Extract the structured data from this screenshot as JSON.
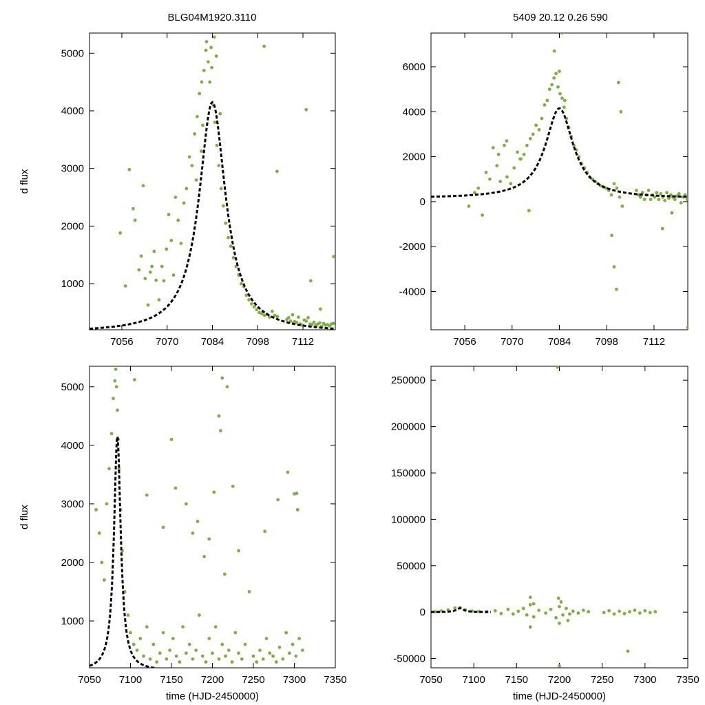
{
  "header": {
    "title_left": "BLG04M1920.3110",
    "title_right": "5409  20.12  0.26  590"
  },
  "style": {
    "point_color": "#7fae42",
    "model_color": "#000000",
    "axis_color": "#000000"
  },
  "chart_data": [
    {
      "id": "top-left",
      "type": "scatter",
      "title": "",
      "xlabel": "",
      "ylabel": "d flux",
      "xlim": [
        7046,
        7122
      ],
      "ylim": [
        200,
        5350
      ],
      "xticks": [
        7056,
        7070,
        7084,
        7098,
        7112
      ],
      "yticks": [
        1000,
        2000,
        3000,
        4000,
        5000
      ],
      "grid": false,
      "model": {
        "name": "fit",
        "t0": 7084,
        "peak": 4150,
        "base": 150,
        "tau": 5.0,
        "x_range": [
          7046,
          7122
        ]
      },
      "series": [
        {
          "name": "observations",
          "x": [
            7055.5,
            7057.1,
            7058.3,
            7059.5,
            7060.1,
            7061.3,
            7062.0,
            7062.6,
            7063.2,
            7064.1,
            7064.8,
            7065.3,
            7066.0,
            7066.6,
            7067.5,
            7068.4,
            7069.0,
            7069.8,
            7070.5,
            7071.3,
            7072.0,
            7072.6,
            7073.4,
            7074.3,
            7075.2,
            7076.0,
            7076.9,
            7077.7,
            7078.5,
            7079.3,
            7080.0,
            7080.7,
            7081.4,
            7082.0,
            7082.7,
            7083.2,
            7083.8,
            7084.3,
            7084.8,
            7085.4,
            7086.0,
            7086.7,
            7087.4,
            7088.1,
            7088.9,
            7089.7,
            7090.5,
            7091.3,
            7092.1,
            7092.9,
            7093.7,
            7094.5,
            7095.3,
            7096.1,
            7096.9,
            7097.7,
            7098.5,
            7099.3,
            7100.1,
            7100.9,
            7101.7,
            7102.5,
            7103.3,
            7104.1,
            7107.0,
            7107.6,
            7108.2,
            7108.8,
            7109.4,
            7110.0,
            7110.6,
            7111.2,
            7111.8,
            7112.4,
            7113.0,
            7113.6,
            7114.2,
            7114.8,
            7115.4,
            7116.0,
            7116.6,
            7117.2,
            7117.8,
            7118.4,
            7119.0,
            7119.6,
            7120.2,
            7120.8,
            7121.4,
            7104.0,
            7100.0,
            7113.0,
            7121.5,
            7084.6,
            7083.6,
            7082.2,
            7085.2,
            7086.4,
            7080.6,
            7079.0,
            7081.0,
            7109.2,
            7114.4,
            7117.4
          ],
          "y": [
            1880,
            960,
            2980,
            2300,
            2100,
            1240,
            1480,
            2700,
            1090,
            630,
            1200,
            1300,
            1560,
            1060,
            720,
            1300,
            1050,
            1600,
            2200,
            1750,
            1150,
            2500,
            2100,
            1700,
            2400,
            2650,
            3200,
            3050,
            3600,
            3900,
            4300,
            4500,
            4700,
            5050,
            4850,
            4500,
            4750,
            4100,
            3800,
            3400,
            3050,
            2650,
            2350,
            2050,
            1800,
            1650,
            1450,
            1300,
            1150,
            1000,
            950,
            800,
            720,
            650,
            600,
            550,
            500,
            480,
            450,
            470,
            420,
            520,
            450,
            430,
            380,
            410,
            350,
            460,
            340,
            330,
            420,
            300,
            280,
            370,
            350,
            410,
            300,
            290,
            330,
            280,
            300,
            320,
            260,
            310,
            280,
            290,
            270,
            300,
            310,
            2950,
            5120,
            4020,
            1470,
            5280,
            5100,
            5200,
            4950,
            3950,
            3300,
            2800,
            3750,
            320,
            1050,
            560
          ]
        }
      ]
    },
    {
      "id": "top-right",
      "type": "scatter",
      "title": "",
      "xlabel": "",
      "ylabel": "",
      "xlim": [
        7046,
        7122
      ],
      "ylim": [
        -5700,
        7500
      ],
      "xticks": [
        7056,
        7070,
        7084,
        7098,
        7112
      ],
      "yticks": [
        -4000,
        -2000,
        0,
        2000,
        4000,
        6000
      ],
      "grid": false,
      "model": {
        "name": "fit",
        "t0": 7084,
        "peak": 4150,
        "base": 150,
        "tau": 5.0,
        "x_range": [
          7046,
          7122
        ]
      },
      "series": [
        {
          "name": "observations",
          "x": [
            7057.2,
            7058.9,
            7060.0,
            7061.2,
            7062.3,
            7063.4,
            7064.4,
            7065.5,
            7066.5,
            7067.7,
            7068.5,
            7069.6,
            7070.6,
            7071.6,
            7072.6,
            7073.5,
            7074.4,
            7075.4,
            7076.2,
            7077.1,
            7078.0,
            7078.8,
            7079.6,
            7080.4,
            7081.1,
            7081.8,
            7082.4,
            7083.0,
            7083.6,
            7084.2,
            7084.8,
            7085.4,
            7086.1,
            7086.8,
            7087.5,
            7088.3,
            7089.0,
            7089.8,
            7090.6,
            7091.4,
            7092.2,
            7093.0,
            7093.8,
            7094.6,
            7095.4,
            7096.2,
            7097.0,
            7097.8,
            7098.6,
            7099.4,
            7100.2,
            7101.0,
            7101.8,
            7102.6,
            7106.8,
            7107.4,
            7108.0,
            7108.6,
            7109.2,
            7109.8,
            7110.4,
            7111.0,
            7111.6,
            7112.2,
            7112.8,
            7113.4,
            7114.0,
            7114.6,
            7115.2,
            7115.8,
            7116.4,
            7117.0,
            7117.6,
            7118.2,
            7118.8,
            7119.4,
            7120.0,
            7120.6,
            7121.2,
            7121.8,
            7099.5,
            7100.2,
            7100.9,
            7101.5,
            7102.2,
            7114.5,
            7117.3,
            7122.0,
            7084.8,
            7082.5,
            7084.0,
            7085.6,
            7068.4,
            7066.0,
            7072.4,
            7075.0
          ],
          "y": [
            -200,
            400,
            600,
            -600,
            1300,
            1000,
            2400,
            1600,
            900,
            2500,
            1100,
            800,
            1500,
            2200,
            1900,
            2100,
            2500,
            2800,
            3000,
            3400,
            3200,
            3700,
            4300,
            4500,
            5000,
            5200,
            5500,
            5700,
            5100,
            4800,
            4600,
            4200,
            3700,
            3300,
            2900,
            2500,
            2300,
            2000,
            1700,
            1500,
            1300,
            1100,
            1000,
            900,
            800,
            700,
            650,
            600,
            500,
            300,
            800,
            600,
            200,
            -200,
            500,
            300,
            200,
            400,
            100,
            300,
            500,
            100,
            300,
            200,
            400,
            100,
            350,
            200,
            50,
            400,
            150,
            300,
            200,
            100,
            250,
            350,
            -50,
            200,
            300,
            100,
            -1500,
            -2900,
            -3900,
            5300,
            4000,
            -1200,
            -500,
            -5600,
            7500,
            6700,
            5800,
            4500,
            2700,
            2100,
            1900,
            -400
          ]
        }
      ]
    },
    {
      "id": "bottom-left",
      "type": "scatter",
      "title": "",
      "xlabel": "time (HJD-2450000)",
      "ylabel": "d flux",
      "xlim": [
        7050,
        7350
      ],
      "ylim": [
        200,
        5350
      ],
      "xticks": [
        7050,
        7100,
        7150,
        7200,
        7250,
        7300,
        7350
      ],
      "yticks": [
        1000,
        2000,
        3000,
        4000,
        5000
      ],
      "grid": false,
      "model": {
        "name": "fit",
        "t0": 7084,
        "peak": 4150,
        "base": 150,
        "tau": 5.0,
        "x_range": [
          7050,
          7130
        ]
      },
      "series": [
        {
          "name": "observations",
          "x": [
            7058,
            7062,
            7065,
            7068,
            7071,
            7074,
            7077,
            7079,
            7081,
            7082,
            7083,
            7084,
            7085,
            7086,
            7088,
            7090,
            7093,
            7097,
            7100,
            7104,
            7108,
            7112,
            7116,
            7120,
            7124,
            7128,
            7132,
            7136,
            7140,
            7144,
            7148,
            7152,
            7156,
            7160,
            7164,
            7168,
            7172,
            7176,
            7180,
            7184,
            7188,
            7192,
            7196,
            7200,
            7204,
            7208,
            7212,
            7216,
            7220,
            7224,
            7228,
            7232,
            7236,
            7240,
            7250,
            7254,
            7258,
            7262,
            7266,
            7270,
            7274,
            7278,
            7282,
            7286,
            7290,
            7294,
            7298,
            7302,
            7306,
            7310,
            7105,
            7120,
            7150,
            7155,
            7168,
            7176,
            7182,
            7196,
            7202,
            7208,
            7210,
            7212,
            7218,
            7225,
            7232,
            7264,
            7280,
            7292,
            7300,
            7303,
            7304,
            7140,
            7190,
            7215,
            7245
          ],
          "y": [
            2900,
            2500,
            2000,
            1700,
            3000,
            3600,
            4200,
            4800,
            5100,
            5300,
            5000,
            4600,
            4100,
            3600,
            2900,
            2200,
            1500,
            1100,
            800,
            600,
            500,
            700,
            400,
            900,
            350,
            600,
            300,
            450,
            800,
            350,
            500,
            700,
            400,
            300,
            900,
            450,
            600,
            350,
            500,
            1100,
            400,
            300,
            700,
            450,
            900,
            350,
            600,
            400,
            500,
            300,
            800,
            450,
            350,
            600,
            400,
            300,
            500,
            350,
            700,
            450,
            400,
            300,
            550,
            350,
            800,
            450,
            600,
            400,
            700,
            500,
            5120,
            3150,
            4100,
            3270,
            3000,
            2500,
            2700,
            2400,
            3200,
            4500,
            4250,
            5150,
            5000,
            3300,
            2200,
            2530,
            3070,
            3540,
            3170,
            3180,
            2900,
            2600,
            2100,
            1800,
            1500
          ]
        }
      ]
    },
    {
      "id": "bottom-right",
      "type": "scatter",
      "title": "",
      "xlabel": "time (HJD-2450000)",
      "ylabel": "",
      "xlim": [
        7050,
        7350
      ],
      "ylim": [
        -60000,
        265000
      ],
      "xticks": [
        7050,
        7100,
        7150,
        7200,
        7250,
        7300,
        7350
      ],
      "yticks": [
        -50000,
        0,
        50000,
        100000,
        150000,
        200000,
        250000
      ],
      "grid": false,
      "model": {
        "name": "fit",
        "t0": 7084,
        "peak": 4150,
        "base": 150,
        "tau": 5.0,
        "x_range": [
          7050,
          7120
        ]
      },
      "series": [
        {
          "name": "observations",
          "x": [
            7055,
            7062,
            7070,
            7078,
            7084,
            7090,
            7098,
            7106,
            7115,
            7125,
            7132,
            7140,
            7146,
            7152,
            7158,
            7162,
            7166,
            7170,
            7176,
            7184,
            7190,
            7196,
            7200,
            7204,
            7208,
            7212,
            7216,
            7222,
            7228,
            7234,
            7252,
            7258,
            7264,
            7270,
            7276,
            7282,
            7288,
            7294,
            7300,
            7306,
            7312,
            7166,
            7166,
            7199,
            7200,
            7202,
            7280,
            7198,
            7200,
            7170,
            7210
          ],
          "y": [
            500,
            1200,
            2500,
            4500,
            5000,
            2500,
            1200,
            800,
            500,
            1500,
            -1500,
            3000,
            -2000,
            1000,
            4000,
            -3000,
            8000,
            -5000,
            2000,
            -1000,
            3000,
            -6000,
            6000,
            -3000,
            4000,
            -2000,
            1000,
            -1000,
            2000,
            500,
            -500,
            1500,
            -2000,
            1000,
            -1500,
            500,
            2000,
            -1000,
            1500,
            -500,
            500,
            16000,
            -16000,
            15000,
            -12000,
            11000,
            -42000,
            264000,
            -58000,
            9000,
            -9000
          ]
        }
      ]
    }
  ]
}
